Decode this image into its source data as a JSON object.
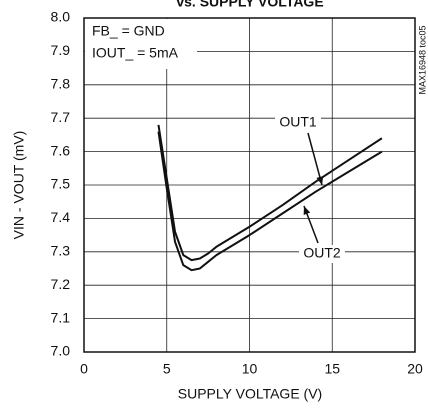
{
  "chart_data": {
    "type": "line",
    "title": "vs. SUPPLY VOLTAGE",
    "xlabel": "SUPPLY VOLTAGE (V)",
    "ylabel": "VIN - VOUT (mV)",
    "side_note": "MAX16948 toc05",
    "conditions": [
      "FB_ = GND",
      "IOUT_ = 5mA"
    ],
    "x": [
      4.5,
      5,
      5.5,
      6,
      6.5,
      7,
      7.5,
      8,
      10,
      12,
      14,
      16,
      18
    ],
    "series": [
      {
        "name": "OUT1",
        "color": "#111111",
        "values": [
          7.68,
          7.52,
          7.36,
          7.29,
          7.275,
          7.28,
          7.295,
          7.315,
          7.375,
          7.44,
          7.51,
          7.575,
          7.64
        ]
      },
      {
        "name": "OUT2",
        "color": "#111111",
        "values": [
          7.66,
          7.49,
          7.33,
          7.26,
          7.245,
          7.25,
          7.27,
          7.29,
          7.35,
          7.415,
          7.48,
          7.54,
          7.6
        ]
      }
    ],
    "xlim": [
      0,
      20
    ],
    "xticks": [
      0,
      5,
      10,
      15,
      20
    ],
    "ylim": [
      7.0,
      8.0
    ],
    "yticks": [
      {
        "value": 7.0,
        "label": "7.0"
      },
      7.1,
      7.2,
      7.3,
      7.4,
      7.5,
      7.6,
      7.7,
      7.8,
      7.9,
      {
        "value": 8.0,
        "label": "8.0"
      }
    ],
    "grid": true
  }
}
